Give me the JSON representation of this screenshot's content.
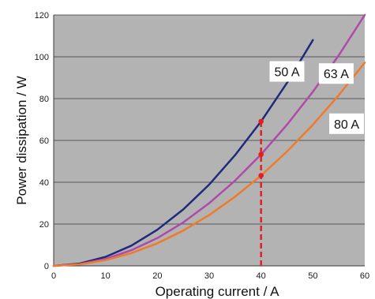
{
  "chart_data": {
    "type": "line",
    "title": "",
    "xlabel": "Operating current / A",
    "ylabel": "Power dissipation / W",
    "xlim": [
      0,
      60
    ],
    "ylim": [
      0,
      120
    ],
    "x_ticks": [
      "0",
      "10",
      "20",
      "30",
      "40",
      "50",
      "60"
    ],
    "y_ticks": [
      "0",
      "20",
      "40",
      "60",
      "80",
      "100",
      "120"
    ],
    "grid": "horizontal",
    "plot_background": "#b3b3b3",
    "series": [
      {
        "name": "50 A",
        "color": "#1f2a7a",
        "x": [
          0,
          5,
          10,
          15,
          20,
          25,
          30,
          35,
          40,
          45,
          50
        ],
        "y": [
          0,
          1.1,
          4.3,
          9.7,
          17.3,
          27.0,
          38.9,
          53.0,
          69.1,
          87.5,
          108
        ]
      },
      {
        "name": "63 A",
        "color": "#b04aa8",
        "x": [
          0,
          5,
          10,
          15,
          20,
          25,
          30,
          35,
          40,
          45,
          50,
          55,
          60
        ],
        "y": [
          0,
          0.8,
          3.3,
          7.5,
          13.3,
          20.8,
          30.0,
          40.8,
          53.3,
          67.5,
          83.3,
          100.8,
          120
        ]
      },
      {
        "name": "80 A",
        "color": "#f07a2a",
        "x": [
          0,
          5,
          10,
          15,
          20,
          25,
          30,
          35,
          40,
          45,
          50,
          55,
          60
        ],
        "y": [
          0,
          0.7,
          2.7,
          6.1,
          10.8,
          16.9,
          24.3,
          33.1,
          43.2,
          54.7,
          67.5,
          81.7,
          97.2
        ]
      }
    ],
    "reference_line": {
      "x": 40,
      "y_range": [
        0,
        69.1
      ],
      "color": "#e02020",
      "style": "dashed",
      "markers_y": [
        69.1,
        53.3,
        43.2
      ]
    },
    "annotations": [
      {
        "text": "50 A",
        "at": [
          45,
          93
        ]
      },
      {
        "text": "63 A",
        "at": [
          54.5,
          92
        ]
      },
      {
        "text": "80 A",
        "at": [
          56.5,
          68
        ]
      }
    ]
  }
}
